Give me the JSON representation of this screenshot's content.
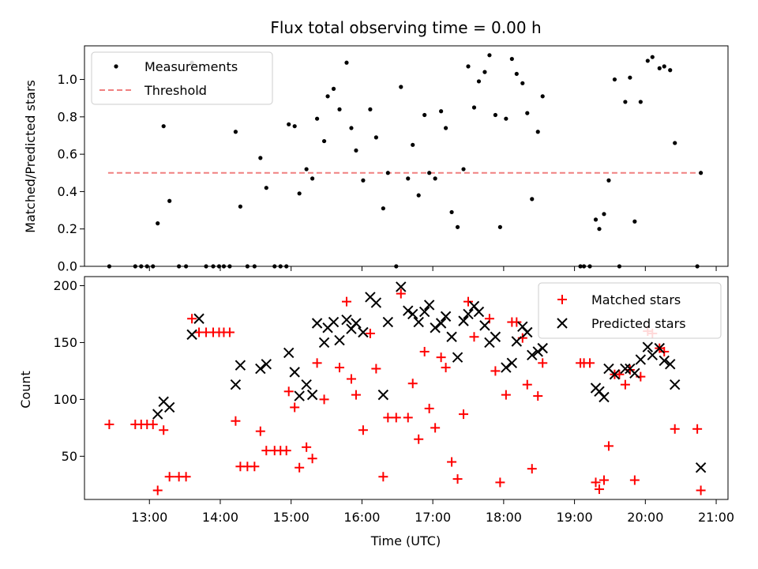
{
  "title": "Flux total observing time = 0.00 h",
  "colors": {
    "measurement": "#000000",
    "threshold": "#f08080",
    "matched": "#ff0000",
    "predicted": "#000000"
  },
  "chart_data": [
    {
      "type": "scatter",
      "ylabel": "Matched/Predicted stars",
      "xlim": [
        "12:05",
        "21:10"
      ],
      "ylim": [
        0,
        1.18
      ],
      "yticks": [
        "0.0",
        "0.2",
        "0.4",
        "0.6",
        "0.8",
        "1.0"
      ],
      "legend": {
        "position": "top-left",
        "entries": [
          "Measurements",
          "Threshold"
        ]
      },
      "threshold": {
        "name": "Threshold",
        "value": 0.5,
        "x_start": "12:25",
        "x_end": "20:47"
      },
      "series": [
        {
          "name": "Measurements",
          "marker": "dot",
          "points": [
            [
              "12:26",
              0
            ],
            [
              "12:48",
              0
            ],
            [
              "12:53",
              0
            ],
            [
              "12:58",
              0
            ],
            [
              "13:03",
              0
            ],
            [
              "13:07",
              0.23
            ],
            [
              "13:12",
              0.75
            ],
            [
              "13:17",
              0.35
            ],
            [
              "13:25",
              0
            ],
            [
              "13:31",
              0
            ],
            [
              "13:36",
              1.09
            ],
            [
              "13:42",
              0.93
            ],
            [
              "13:48",
              0
            ],
            [
              "13:54",
              0
            ],
            [
              "13:59",
              0
            ],
            [
              "14:03",
              0
            ],
            [
              "14:08",
              0
            ],
            [
              "14:13",
              0.72
            ],
            [
              "14:17",
              0.32
            ],
            [
              "14:23",
              0
            ],
            [
              "14:29",
              0
            ],
            [
              "14:34",
              0.58
            ],
            [
              "14:39",
              0.42
            ],
            [
              "14:46",
              0
            ],
            [
              "14:51",
              0
            ],
            [
              "14:56",
              0
            ],
            [
              "14:58",
              0.76
            ],
            [
              "15:03",
              0.75
            ],
            [
              "15:07",
              0.39
            ],
            [
              "15:13",
              0.52
            ],
            [
              "15:18",
              0.47
            ],
            [
              "15:22",
              0.79
            ],
            [
              "15:28",
              0.67
            ],
            [
              "15:31",
              0.91
            ],
            [
              "15:36",
              0.95
            ],
            [
              "15:41",
              0.84
            ],
            [
              "15:47",
              1.09
            ],
            [
              "15:51",
              0.74
            ],
            [
              "15:55",
              0.62
            ],
            [
              "16:01",
              0.46
            ],
            [
              "16:07",
              0.84
            ],
            [
              "16:12",
              0.69
            ],
            [
              "16:18",
              0.31
            ],
            [
              "16:22",
              0.5
            ],
            [
              "16:29",
              0
            ],
            [
              "16:33",
              0.96
            ],
            [
              "16:39",
              0.47
            ],
            [
              "16:43",
              0.65
            ],
            [
              "16:48",
              0.38
            ],
            [
              "16:53",
              0.81
            ],
            [
              "16:57",
              0.5
            ],
            [
              "17:02",
              0.47
            ],
            [
              "17:07",
              0.83
            ],
            [
              "17:11",
              0.74
            ],
            [
              "17:16",
              0.29
            ],
            [
              "17:21",
              0.21
            ],
            [
              "17:26",
              0.52
            ],
            [
              "17:30",
              1.07
            ],
            [
              "17:35",
              0.85
            ],
            [
              "17:39",
              0.99
            ],
            [
              "17:44",
              1.04
            ],
            [
              "17:48",
              1.13
            ],
            [
              "17:53",
              0.81
            ],
            [
              "17:57",
              0.21
            ],
            [
              "18:02",
              0.79
            ],
            [
              "18:07",
              1.11
            ],
            [
              "18:11",
              1.03
            ],
            [
              "18:16",
              0.98
            ],
            [
              "18:20",
              0.82
            ],
            [
              "18:24",
              0.36
            ],
            [
              "18:29",
              0.72
            ],
            [
              "18:33",
              0.91
            ],
            [
              "19:05",
              0
            ],
            [
              "19:08",
              0
            ],
            [
              "19:13",
              0
            ],
            [
              "19:18",
              0.25
            ],
            [
              "19:21",
              0.2
            ],
            [
              "19:25",
              0.28
            ],
            [
              "19:29",
              0.46
            ],
            [
              "19:34",
              1
            ],
            [
              "19:38",
              0
            ],
            [
              "19:43",
              0.88
            ],
            [
              "19:47",
              1.01
            ],
            [
              "19:51",
              0.24
            ],
            [
              "19:56",
              0.88
            ],
            [
              "20:02",
              1.1
            ],
            [
              "20:06",
              1.12
            ],
            [
              "20:12",
              1.06
            ],
            [
              "20:16",
              1.07
            ],
            [
              "20:21",
              1.05
            ],
            [
              "20:25",
              0.66
            ],
            [
              "20:44",
              0
            ],
            [
              "20:47",
              0.5
            ]
          ]
        }
      ]
    },
    {
      "type": "scatter",
      "xlabel": "Time (UTC)",
      "ylabel": "Count",
      "xlim": [
        "12:05",
        "21:10"
      ],
      "ylim": [
        12,
        208
      ],
      "xticks": [
        "13:00",
        "14:00",
        "15:00",
        "16:00",
        "17:00",
        "18:00",
        "19:00",
        "20:00",
        "21:00"
      ],
      "yticks": [
        "50",
        "100",
        "150",
        "200"
      ],
      "legend": {
        "position": "top-right",
        "entries": [
          "Matched stars",
          "Predicted stars"
        ]
      },
      "series": [
        {
          "name": "Matched stars",
          "marker": "plus",
          "points": [
            [
              "12:26",
              78
            ],
            [
              "12:48",
              78
            ],
            [
              "12:53",
              78
            ],
            [
              "12:58",
              78
            ],
            [
              "13:03",
              78
            ],
            [
              "13:07",
              20
            ],
            [
              "13:12",
              73
            ],
            [
              "13:17",
              32
            ],
            [
              "13:25",
              32
            ],
            [
              "13:31",
              32
            ],
            [
              "13:36",
              171
            ],
            [
              "13:42",
              159
            ],
            [
              "13:48",
              159
            ],
            [
              "13:54",
              159
            ],
            [
              "13:59",
              159
            ],
            [
              "14:03",
              159
            ],
            [
              "14:08",
              159
            ],
            [
              "14:13",
              81
            ],
            [
              "14:17",
              41
            ],
            [
              "14:23",
              41
            ],
            [
              "14:29",
              41
            ],
            [
              "14:34",
              72
            ],
            [
              "14:39",
              55
            ],
            [
              "14:46",
              55
            ],
            [
              "14:51",
              55
            ],
            [
              "14:56",
              55
            ],
            [
              "14:58",
              107
            ],
            [
              "15:03",
              93
            ],
            [
              "15:07",
              40
            ],
            [
              "15:13",
              58
            ],
            [
              "15:18",
              48
            ],
            [
              "15:22",
              132
            ],
            [
              "15:28",
              100
            ],
            [
              "15:41",
              128
            ],
            [
              "15:47",
              186
            ],
            [
              "15:51",
              118
            ],
            [
              "15:55",
              104
            ],
            [
              "16:01",
              73
            ],
            [
              "16:07",
              158
            ],
            [
              "16:12",
              127
            ],
            [
              "16:18",
              32
            ],
            [
              "16:22",
              84
            ],
            [
              "16:29",
              84
            ],
            [
              "16:33",
              193
            ],
            [
              "16:39",
              84
            ],
            [
              "16:43",
              114
            ],
            [
              "16:48",
              65
            ],
            [
              "16:53",
              142
            ],
            [
              "16:57",
              92
            ],
            [
              "17:02",
              75
            ],
            [
              "17:07",
              137
            ],
            [
              "17:11",
              128
            ],
            [
              "17:16",
              45
            ],
            [
              "17:21",
              30
            ],
            [
              "17:26",
              87
            ],
            [
              "17:30",
              186
            ],
            [
              "17:35",
              155
            ],
            [
              "17:48",
              171
            ],
            [
              "17:53",
              125
            ],
            [
              "17:57",
              27
            ],
            [
              "18:02",
              104
            ],
            [
              "18:07",
              168
            ],
            [
              "18:11",
              168
            ],
            [
              "18:16",
              154
            ],
            [
              "18:20",
              113
            ],
            [
              "18:24",
              39
            ],
            [
              "18:29",
              103
            ],
            [
              "18:33",
              132
            ],
            [
              "19:05",
              132
            ],
            [
              "19:08",
              132
            ],
            [
              "19:13",
              132
            ],
            [
              "19:18",
              27
            ],
            [
              "19:21",
              21
            ],
            [
              "19:25",
              29
            ],
            [
              "19:29",
              59
            ],
            [
              "19:34",
              122
            ],
            [
              "19:38",
              122
            ],
            [
              "19:43",
              113
            ],
            [
              "19:47",
              126
            ],
            [
              "19:51",
              29
            ],
            [
              "19:56",
              120
            ],
            [
              "20:02",
              160
            ],
            [
              "20:06",
              158
            ],
            [
              "20:12",
              145
            ],
            [
              "20:16",
              142
            ],
            [
              "20:25",
              74
            ],
            [
              "20:44",
              74
            ],
            [
              "20:47",
              20
            ]
          ]
        },
        {
          "name": "Predicted stars",
          "marker": "x",
          "points": [
            [
              "13:07",
              87
            ],
            [
              "13:12",
              98
            ],
            [
              "13:17",
              93
            ],
            [
              "13:36",
              157
            ],
            [
              "13:42",
              171
            ],
            [
              "14:13",
              113
            ],
            [
              "14:17",
              130
            ],
            [
              "14:34",
              127
            ],
            [
              "14:39",
              131
            ],
            [
              "14:58",
              141
            ],
            [
              "15:03",
              124
            ],
            [
              "15:07",
              103
            ],
            [
              "15:13",
              113
            ],
            [
              "15:18",
              104
            ],
            [
              "15:22",
              167
            ],
            [
              "15:28",
              150
            ],
            [
              "15:31",
              163
            ],
            [
              "15:36",
              168
            ],
            [
              "15:41",
              152
            ],
            [
              "15:47",
              170
            ],
            [
              "15:51",
              162
            ],
            [
              "15:55",
              167
            ],
            [
              "16:01",
              159
            ],
            [
              "16:07",
              190
            ],
            [
              "16:12",
              185
            ],
            [
              "16:18",
              104
            ],
            [
              "16:22",
              168
            ],
            [
              "16:33",
              199
            ],
            [
              "16:39",
              178
            ],
            [
              "16:43",
              175
            ],
            [
              "16:48",
              168
            ],
            [
              "16:53",
              177
            ],
            [
              "16:57",
              183
            ],
            [
              "17:02",
              163
            ],
            [
              "17:07",
              167
            ],
            [
              "17:11",
              173
            ],
            [
              "17:16",
              155
            ],
            [
              "17:21",
              137
            ],
            [
              "17:26",
              169
            ],
            [
              "17:30",
              175
            ],
            [
              "17:35",
              182
            ],
            [
              "17:39",
              177
            ],
            [
              "17:44",
              165
            ],
            [
              "17:48",
              150
            ],
            [
              "17:53",
              155
            ],
            [
              "18:02",
              128
            ],
            [
              "18:07",
              132
            ],
            [
              "18:11",
              151
            ],
            [
              "18:16",
              164
            ],
            [
              "18:20",
              159
            ],
            [
              "18:24",
              139
            ],
            [
              "18:29",
              142
            ],
            [
              "18:33",
              145
            ],
            [
              "19:18",
              110
            ],
            [
              "19:21",
              107
            ],
            [
              "19:25",
              102
            ],
            [
              "19:29",
              127
            ],
            [
              "19:34",
              122
            ],
            [
              "19:43",
              127
            ],
            [
              "19:47",
              127
            ],
            [
              "19:51",
              123
            ],
            [
              "19:56",
              135
            ],
            [
              "20:02",
              146
            ],
            [
              "20:06",
              139
            ],
            [
              "20:12",
              145
            ],
            [
              "20:16",
              134
            ],
            [
              "20:21",
              131
            ],
            [
              "20:25",
              113
            ],
            [
              "20:47",
              40
            ]
          ]
        }
      ]
    }
  ]
}
